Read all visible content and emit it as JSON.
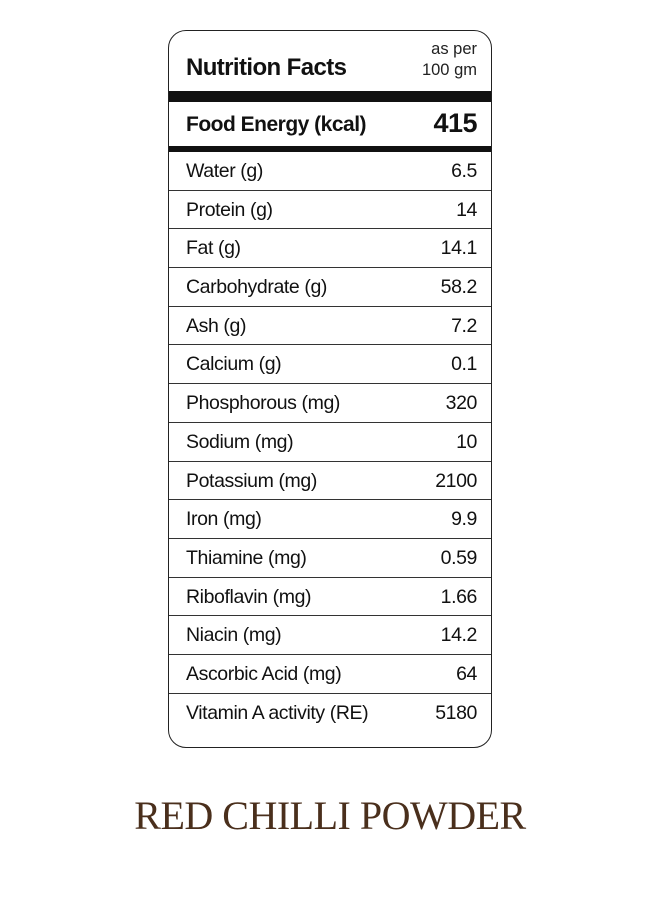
{
  "table": {
    "title": "Nutrition Facts",
    "basis_line1": "as per",
    "basis_line2": "100 gm",
    "energy_label": "Food Energy (kcal)",
    "energy_value": "415",
    "rows": [
      {
        "label": "Water (g)",
        "value": "6.5"
      },
      {
        "label": "Protein (g)",
        "value": "14"
      },
      {
        "label": "Fat (g)",
        "value": "14.1"
      },
      {
        "label": "Carbohydrate (g)",
        "value": "58.2"
      },
      {
        "label": "Ash (g)",
        "value": "7.2"
      },
      {
        "label": "Calcium (g)",
        "value": "0.1"
      },
      {
        "label": "Phosphorous (mg)",
        "value": "320"
      },
      {
        "label": "Sodium (mg)",
        "value": "10"
      },
      {
        "label": "Potassium (mg)",
        "value": "2100"
      },
      {
        "label": "Iron (mg)",
        "value": "9.9"
      },
      {
        "label": "Thiamine (mg)",
        "value": "0.59"
      },
      {
        "label": "Riboflavin (mg)",
        "value": "1.66"
      },
      {
        "label": "Niacin (mg)",
        "value": "14.2"
      },
      {
        "label": "Ascorbic Acid (mg)",
        "value": "64"
      },
      {
        "label": "Vitamin A activity (RE)",
        "value": "5180"
      }
    ]
  },
  "product_name": "RED CHILLI POWDER",
  "colors": {
    "text": "#111111",
    "product_name": "#4a2f1c",
    "rule": "#111111"
  }
}
